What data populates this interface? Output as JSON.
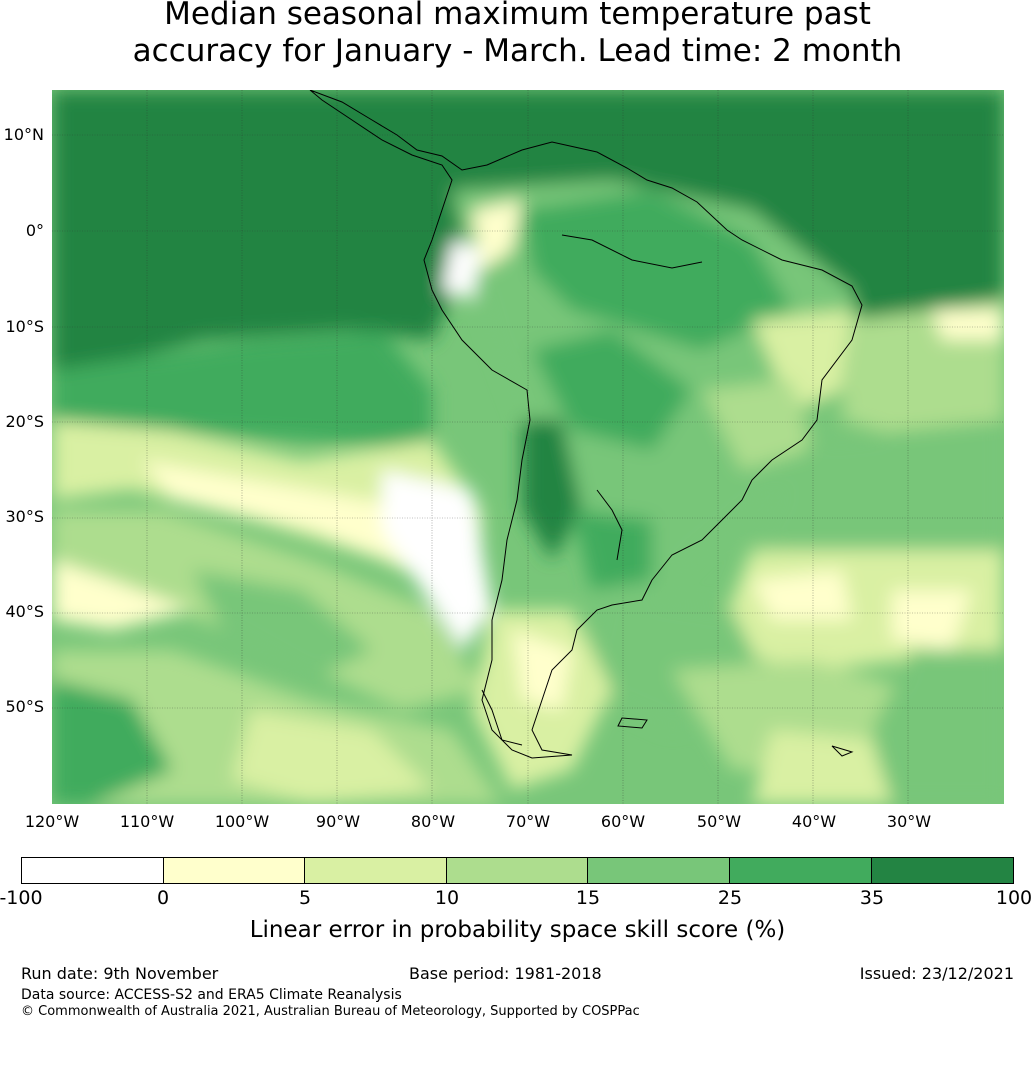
{
  "title_line1": "Median seasonal maximum temperature past",
  "title_line2": "accuracy for January - March. Lead time: 2 month",
  "map": {
    "lat_labels": [
      "10°N",
      "0°",
      "10°S",
      "20°S",
      "30°S",
      "40°S",
      "50°S"
    ],
    "lon_labels": [
      "120°W",
      "110°W",
      "100°W",
      "90°W",
      "80°W",
      "70°W",
      "60°W",
      "50°W",
      "40°W",
      "30°W"
    ]
  },
  "colorbar": {
    "ticks": [
      "-100",
      "0",
      "5",
      "10",
      "15",
      "25",
      "35",
      "100"
    ],
    "colors": [
      "#ffffff",
      "#ffffcc",
      "#d9f0a3",
      "#addd8e",
      "#78c679",
      "#41ab5d",
      "#238443"
    ],
    "label": "Linear error in probability space skill score (%)"
  },
  "footer": {
    "run_date": "Run date: 9th November",
    "base_period": "Base period: 1981-2018",
    "issued": "Issued: 23/12/2021",
    "data_source": "Data source: ACCESS-S2 and ERA5 Climate Reanalysis",
    "copyright": "© Commonwealth of Australia 2021, Australian Bureau of Meteorology, Supported by COSPPac"
  }
}
